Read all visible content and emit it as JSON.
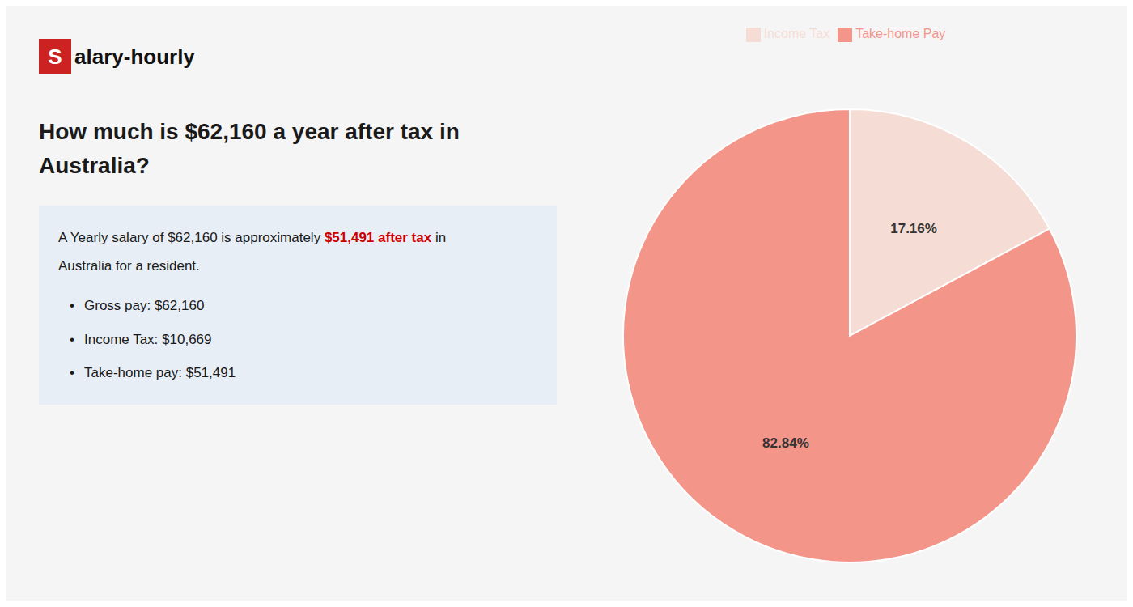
{
  "chart_data": {
    "type": "pie",
    "title": "How much is $62,160 a year after tax in\nAustralia?",
    "categories": [
      "Income Tax",
      "Take-home Pay"
    ],
    "values": [
      17.16,
      82.84
    ],
    "value_labels": [
      "17.16%",
      "82.84%"
    ],
    "colors": [
      "#f5ddd5",
      "#f4958a"
    ],
    "data_labels": true,
    "legend": "top",
    "annotations": [
      [
        {
          "text": "S",
          "color": "#cc2222"
        },
        {
          "text": "alary-hourly"
        }
      ],
      [
        {
          "text": "A Yearly salary of $62,160 is approximately "
        },
        {
          "text": "$51,491 after tax",
          "color": "#cc0000"
        },
        {
          "text": " in"
        }
      ],
      [
        {
          "text": "Australia for a resident."
        }
      ],
      [
        {
          "text": "•"
        },
        {
          "text": "Gross pay: $62,160"
        }
      ],
      [
        {
          "text": "•"
        },
        {
          "text": "Income Tax: $10,669"
        }
      ],
      [
        {
          "text": "•"
        },
        {
          "text": "Take-home pay: $51,491"
        }
      ]
    ]
  }
}
